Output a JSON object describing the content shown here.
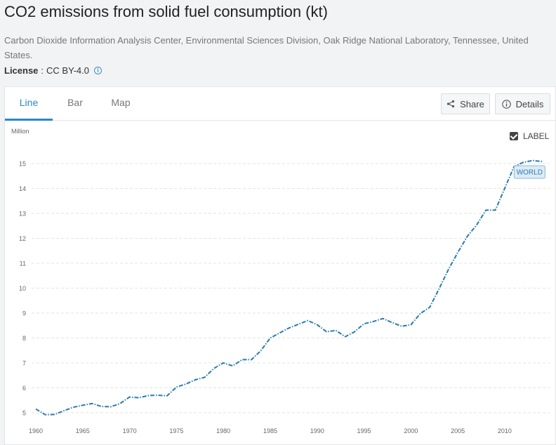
{
  "header": {
    "title": "CO2 emissions from solid fuel consumption (kt)",
    "source": "Carbon Dioxide Information Analysis Center, Environmental Sciences Division, Oak Ridge National Laboratory, Tennessee, United States.",
    "license_label": "License",
    "license_sep": ":",
    "license_value": "CC BY-4.0"
  },
  "tabs": [
    {
      "label": "Line",
      "active": true
    },
    {
      "label": "Bar",
      "active": false
    },
    {
      "label": "Map",
      "active": false
    }
  ],
  "toolbar": {
    "share_label": "Share",
    "details_label": "Details",
    "label_toggle": "LABEL",
    "label_checked": true
  },
  "colors": {
    "line": "#2a7ab0",
    "accent": "#2a88c8",
    "grid": "#e3e3e3"
  },
  "chart_data": {
    "type": "line",
    "title": "",
    "xlabel": "",
    "ylabel": "Million",
    "xlim": [
      1960,
      2014
    ],
    "ylim": [
      5,
      15
    ],
    "x_ticks": [
      1960,
      1965,
      1970,
      1975,
      1980,
      1985,
      1990,
      1995,
      2000,
      2005,
      2010
    ],
    "y_ticks": [
      5,
      6,
      7,
      8,
      9,
      10,
      11,
      12,
      13,
      14,
      15
    ],
    "grid": true,
    "series": [
      {
        "name": "WORLD",
        "x": [
          1960,
          1961,
          1962,
          1963,
          1964,
          1965,
          1966,
          1967,
          1968,
          1969,
          1970,
          1971,
          1972,
          1973,
          1974,
          1975,
          1976,
          1977,
          1978,
          1979,
          1980,
          1981,
          1982,
          1983,
          1984,
          1985,
          1986,
          1987,
          1988,
          1989,
          1990,
          1991,
          1992,
          1993,
          1994,
          1995,
          1996,
          1997,
          1998,
          1999,
          2000,
          2001,
          2002,
          2003,
          2004,
          2005,
          2006,
          2007,
          2008,
          2009,
          2010,
          2011,
          2012,
          2013,
          2014
        ],
        "values": [
          5.15,
          4.92,
          4.93,
          5.08,
          5.22,
          5.3,
          5.37,
          5.25,
          5.24,
          5.37,
          5.63,
          5.6,
          5.69,
          5.7,
          5.68,
          6.03,
          6.15,
          6.32,
          6.42,
          6.78,
          7.0,
          6.88,
          7.13,
          7.13,
          7.49,
          8.0,
          8.2,
          8.4,
          8.55,
          8.7,
          8.53,
          8.25,
          8.3,
          8.05,
          8.25,
          8.57,
          8.66,
          8.78,
          8.62,
          8.47,
          8.53,
          8.98,
          9.23,
          9.97,
          10.75,
          11.43,
          12.07,
          12.53,
          13.13,
          13.13,
          14.0,
          14.88,
          15.05,
          15.12,
          15.08
        ]
      }
    ]
  }
}
